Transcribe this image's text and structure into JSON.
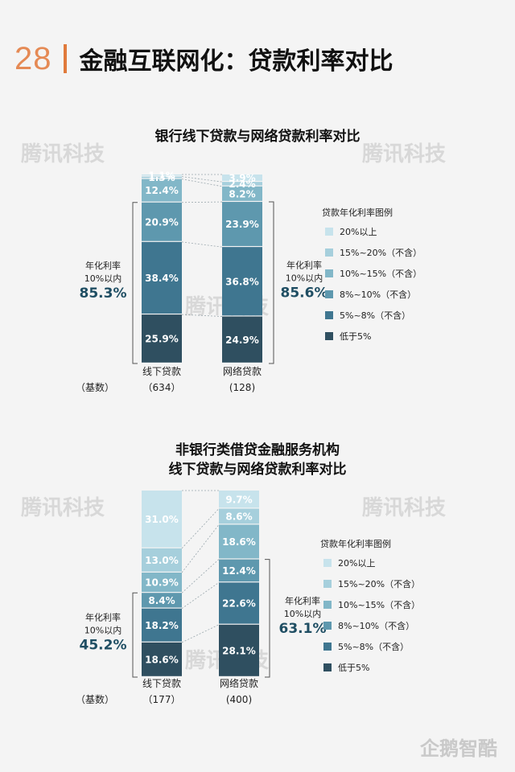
{
  "header": {
    "page_number": "28",
    "title": "金融互联网化：贷款利率对比"
  },
  "watermark": "腾讯科技",
  "logo": "企鹅智酷",
  "colors": [
    "#2f4f60",
    "#3f7690",
    "#5e98ae",
    "#82b7c8",
    "#a6cfdc",
    "#c7e3ec"
  ],
  "chart_data": [
    {
      "type": "bar",
      "stacked": true,
      "title": "银行线下贷款与网络贷款利率对比",
      "categories": [
        "线下贷款",
        "网络贷款"
      ],
      "base_label": "（基数）",
      "base_counts": [
        "（634）",
        "(128)"
      ],
      "series": [
        {
          "name": "低于5%",
          "values": [
            25.9,
            24.9
          ],
          "labels": [
            "25.9%",
            "24.9%"
          ]
        },
        {
          "name": "5%~8%（不含）",
          "values": [
            38.4,
            36.8
          ],
          "labels": [
            "38.4%",
            "36.8%"
          ]
        },
        {
          "name": "8%~10%（不含）",
          "values": [
            20.9,
            23.9
          ],
          "labels": [
            "20.9%",
            "23.9%"
          ]
        },
        {
          "name": "10%~15%（不含）",
          "values": [
            12.4,
            8.2
          ],
          "labels": [
            "12.4%",
            "8.2%"
          ]
        },
        {
          "name": "15%~20%（不含）",
          "values": [
            1.3,
            2.4
          ],
          "labels": [
            "1.3%",
            "2.4%"
          ]
        },
        {
          "name": "20%以上",
          "values": [
            1.1,
            3.9
          ],
          "labels": [
            "1.1%",
            "3.9%"
          ]
        }
      ],
      "legend_title": "贷款年化利率图例",
      "legend": [
        "20%以上",
        "15%~20%（不含）",
        "10%~15%（不含）",
        "8%~10%（不含）",
        "5%~8%（不含）",
        "低于5%"
      ],
      "summary": [
        {
          "label1": "年化利率",
          "label2": "10%以内",
          "value": "85.3%"
        },
        {
          "label1": "年化利率",
          "label2": "10%以内",
          "value": "85.6%"
        }
      ]
    },
    {
      "type": "bar",
      "stacked": true,
      "title": "非银行类借贷金融服务机构",
      "title2": "线下贷款与网络贷款利率对比",
      "categories": [
        "线下贷款",
        "网络贷款"
      ],
      "base_label": "（基数）",
      "base_counts": [
        "（177）",
        "(400)"
      ],
      "series": [
        {
          "name": "低于5%",
          "values": [
            18.6,
            28.1
          ],
          "labels": [
            "18.6%",
            "28.1%"
          ]
        },
        {
          "name": "5%~8%（不含）",
          "values": [
            18.2,
            22.6
          ],
          "labels": [
            "18.2%",
            "22.6%"
          ]
        },
        {
          "name": "8%~10%（不含）",
          "values": [
            8.4,
            12.4
          ],
          "labels": [
            "8.4%",
            "12.4%"
          ]
        },
        {
          "name": "10%~15%（不含）",
          "values": [
            10.9,
            18.6
          ],
          "labels": [
            "10.9%",
            "18.6%"
          ]
        },
        {
          "name": "15%~20%（不含）",
          "values": [
            13.0,
            8.6
          ],
          "labels": [
            "13.0%",
            "8.6%"
          ]
        },
        {
          "name": "20%以上",
          "values": [
            31.0,
            9.7
          ],
          "labels": [
            "31.0%",
            "9.7%"
          ]
        }
      ],
      "legend_title": "贷款年化利率图例",
      "legend": [
        "20%以上",
        "15%~20%（不含）",
        "10%~15%（不含）",
        "8%~10%（不含）",
        "5%~8%（不含）",
        "低于5%"
      ],
      "summary": [
        {
          "label1": "年化利率",
          "label2": "10%以内",
          "value": "45.2%"
        },
        {
          "label1": "年化利率",
          "label2": "10%以内",
          "value": "63.1%"
        }
      ]
    }
  ]
}
